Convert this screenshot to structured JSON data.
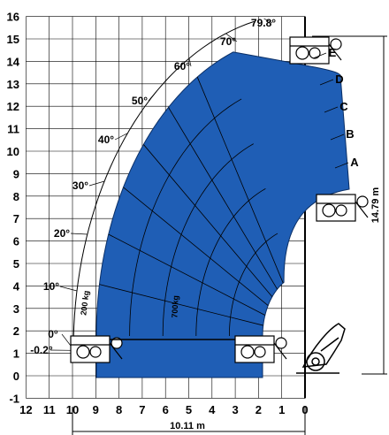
{
  "chart_data": {
    "type": "load chart",
    "x_axis": {
      "ticks": [
        "12",
        "11",
        "10",
        "9",
        "8",
        "7",
        "6",
        "5",
        "4",
        "3",
        "2",
        "1",
        "0"
      ],
      "range": [
        12,
        0
      ]
    },
    "y_axis": {
      "ticks": [
        "-1",
        "0",
        "1",
        "2",
        "3",
        "4",
        "5",
        "6",
        "7",
        "8",
        "9",
        "10",
        "11",
        "12",
        "13",
        "14",
        "15",
        "16"
      ],
      "range": [
        -1,
        16
      ]
    },
    "grid": true,
    "boom_angles": [
      {
        "label": "-0.2°",
        "value": -0.2
      },
      {
        "label": "0°",
        "value": 0
      },
      {
        "label": "10°",
        "value": 10
      },
      {
        "label": "20°",
        "value": 20
      },
      {
        "label": "30°",
        "value": 30
      },
      {
        "label": "40°",
        "value": 40
      },
      {
        "label": "50°",
        "value": 50
      },
      {
        "label": "60°",
        "value": 60
      },
      {
        "label": "70°",
        "value": 70
      },
      {
        "label": "79.8°",
        "value": 79.8
      }
    ],
    "extension_curves": [
      "A",
      "B",
      "C",
      "D",
      "E"
    ],
    "load_zones": [
      "200 kg",
      "700kg"
    ],
    "max_height_label": "14.79 m",
    "max_reach_label": "10.11 m",
    "colors": {
      "load_zone": "#1f5eb5",
      "grid": "#000000"
    }
  }
}
